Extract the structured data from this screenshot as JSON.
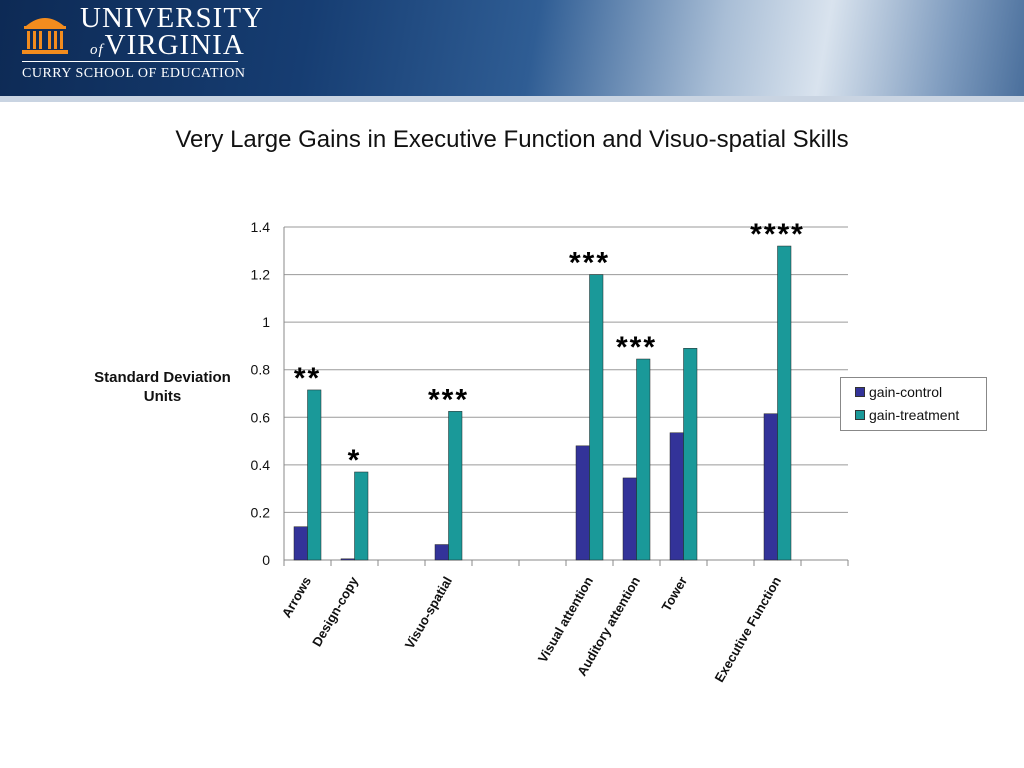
{
  "header": {
    "university_line1": "UNIVERSITY",
    "university_of": "of",
    "university_line2": "VIRGINIA",
    "school": "CURRY SCHOOL OF EDUCATION",
    "logo_icon": "rotunda-icon"
  },
  "slide": {
    "title": "Very Large Gains in Executive Function and Visuo-spatial Skills"
  },
  "colors": {
    "control": "#333399",
    "treatment": "#1a9999",
    "gridline": "#9a9a9a"
  },
  "chart_data": {
    "type": "bar",
    "title": "",
    "xlabel": "",
    "ylabel": "Standard Deviation Units",
    "ylim": [
      0,
      1.4
    ],
    "yticks": [
      "0",
      "0.2",
      "0.4",
      "0.6",
      "0.8",
      "1",
      "1.2",
      "1.4"
    ],
    "grid": true,
    "legend_position": "right",
    "categories": [
      "Arrows",
      "Design-copy",
      "",
      "Visuo-spatial",
      "",
      "",
      "Visual attention",
      "Auditory attention",
      "Tower",
      "",
      "Executive Function",
      ""
    ],
    "series": [
      {
        "name": "gain-control",
        "values": [
          0.14,
          0.005,
          null,
          0.065,
          null,
          null,
          0.48,
          0.345,
          0.535,
          null,
          0.615,
          null
        ]
      },
      {
        "name": "gain-treatment",
        "values": [
          0.715,
          0.37,
          null,
          0.625,
          null,
          null,
          1.2,
          0.845,
          0.89,
          null,
          1.32,
          null
        ]
      }
    ],
    "annotations": [
      "**",
      "*",
      "",
      "***",
      "",
      "",
      "***",
      "***",
      "",
      "",
      "****",
      ""
    ]
  }
}
